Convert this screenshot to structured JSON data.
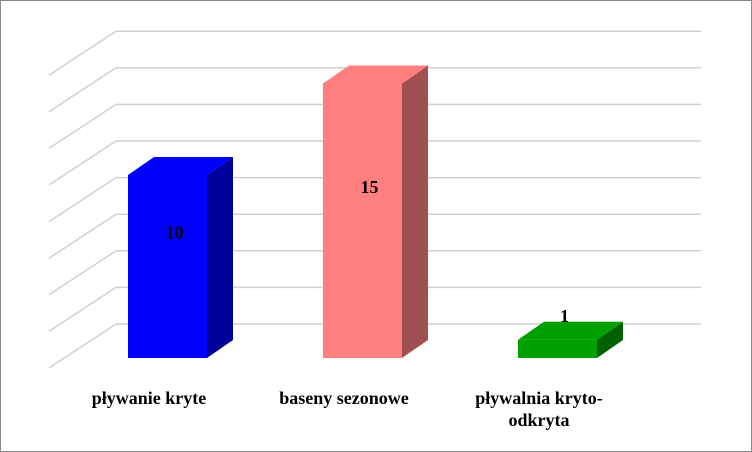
{
  "chart_data": {
    "type": "bar3d",
    "categories": [
      "pływanie kryte",
      "baseny sezonowe",
      "pływalnia kryto-\nodkryta"
    ],
    "values": [
      10,
      15,
      1
    ],
    "colors": [
      "#0000ff",
      "#ff7f7f",
      "#00a000"
    ],
    "side_colors": [
      "#00009a",
      "#a05050",
      "#006000"
    ],
    "ylim": [
      0,
      16
    ],
    "yticks": [
      0,
      2,
      4,
      6,
      8,
      10,
      12,
      14,
      16
    ],
    "grid": true
  }
}
